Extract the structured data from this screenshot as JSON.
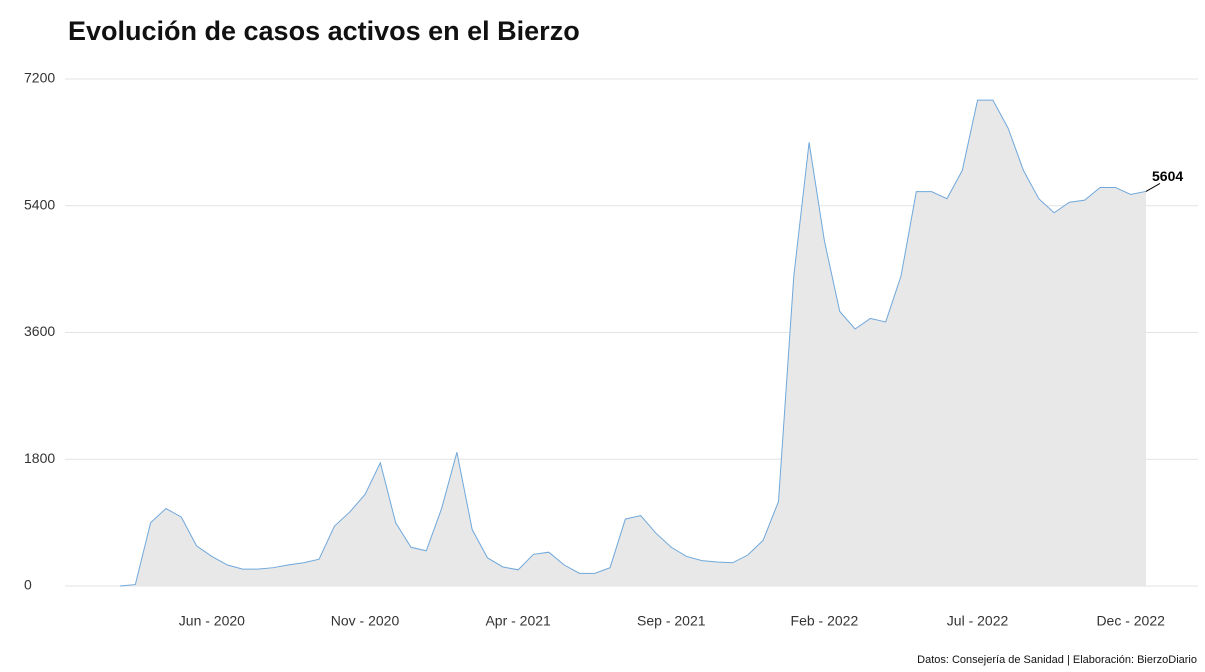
{
  "chart_data": {
    "type": "area",
    "title": "Evolución de casos activos en el Bierzo",
    "source": "Datos: Consejería de Sanidad | Elaboración: BierzoDiario",
    "categories": [
      null,
      null,
      null,
      null,
      null,
      null,
      "Jun - 2020",
      null,
      null,
      null,
      null,
      null,
      null,
      null,
      null,
      null,
      "Nov - 2020",
      null,
      null,
      null,
      null,
      null,
      null,
      null,
      null,
      null,
      "Apr - 2021",
      null,
      null,
      null,
      null,
      null,
      null,
      null,
      null,
      null,
      "Sep - 2021",
      null,
      null,
      null,
      null,
      null,
      null,
      null,
      null,
      null,
      "Feb - 2022",
      null,
      null,
      null,
      null,
      null,
      null,
      null,
      null,
      null,
      "Jul - 2022",
      null,
      null,
      null,
      null,
      null,
      null,
      null,
      null,
      null,
      "Dec - 2022",
      null
    ],
    "values": [
      0,
      20,
      900,
      1100,
      980,
      570,
      420,
      300,
      240,
      240,
      260,
      300,
      330,
      380,
      850,
      1050,
      1300,
      1750,
      900,
      550,
      500,
      1100,
      1900,
      800,
      400,
      270,
      230,
      450,
      480,
      300,
      180,
      180,
      260,
      950,
      1000,
      750,
      550,
      420,
      360,
      340,
      330,
      440,
      650,
      1200,
      4400,
      6300,
      4900,
      3900,
      3650,
      3800,
      3750,
      4400,
      5600,
      5600,
      5500,
      5900,
      6900,
      6900,
      6500,
      5900,
      5500,
      5300,
      5450,
      5480,
      5660,
      5660,
      5560,
      5604
    ],
    "color": "#6fa8dc",
    "fill": "#e8e8e8",
    "ylim": [
      0,
      7200
    ],
    "yticks": [
      0,
      1800,
      3600,
      5400,
      7200
    ],
    "grid": true
  }
}
